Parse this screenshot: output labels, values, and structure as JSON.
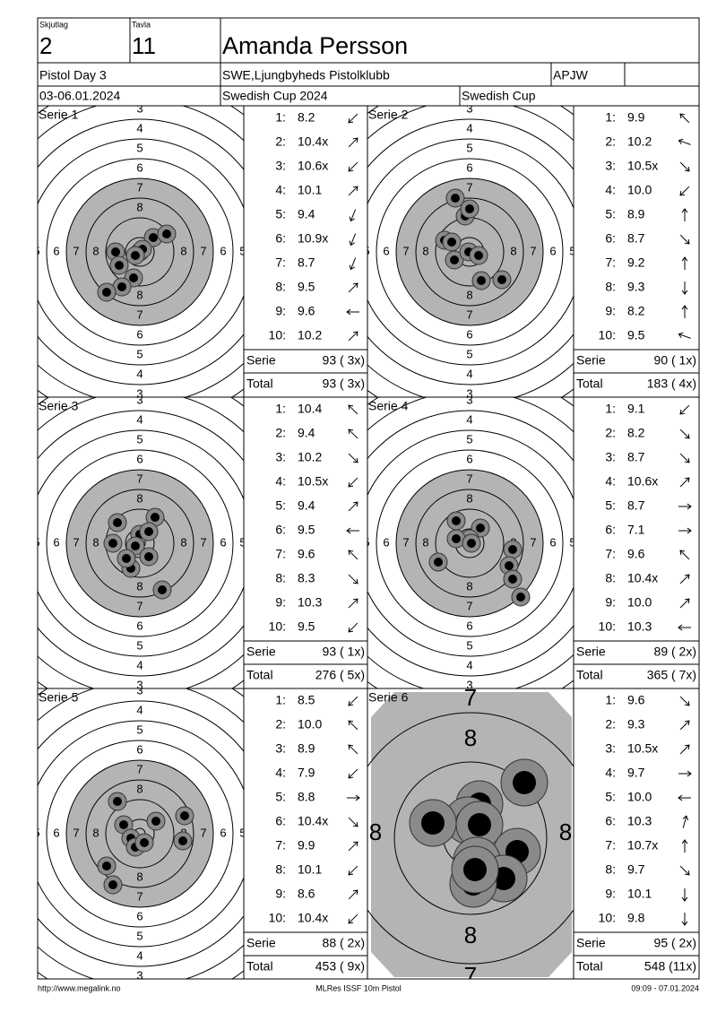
{
  "header": {
    "skjutlag_label": "Skjutlag",
    "skjutlag": "2",
    "tavla_label": "Tavla",
    "tavla": "11",
    "name": "Amanda Persson",
    "event": "Pistol Day 3",
    "club": "SWE,Ljungbyheds Pistolklubb",
    "class": "APJW",
    "date": "03-06.01.2024",
    "competition": "Swedish Cup 2024",
    "cup": "Swedish Cup"
  },
  "ring_labels": [
    "3",
    "4",
    "5",
    "6",
    "7",
    "8"
  ],
  "shot_numbers": [
    "1:",
    "2:",
    "3:",
    "4:",
    "5:",
    "6:",
    "7:",
    "8:",
    "9:",
    "10:"
  ],
  "serie_label": "Serie",
  "total_label": "Total",
  "series": [
    {
      "name": "Serie 1",
      "shots": [
        "8.2",
        "10.4x",
        "10.6x",
        "10.1",
        "9.4",
        "10.9x",
        "8.7",
        "9.5",
        "9.6",
        "10.2"
      ],
      "serie_score": "93 ( 3x)",
      "total_score": "93 ( 3x)"
    },
    {
      "name": "Serie 2",
      "shots": [
        "9.9",
        "10.2",
        "10.5x",
        "10.0",
        "8.9",
        "8.7",
        "9.2",
        "9.3",
        "8.2",
        "9.5"
      ],
      "serie_score": "90 ( 1x)",
      "total_score": "183 ( 4x)"
    },
    {
      "name": "Serie 3",
      "shots": [
        "10.4",
        "9.4",
        "10.2",
        "10.5x",
        "9.4",
        "9.5",
        "9.6",
        "8.3",
        "10.3",
        "9.5"
      ],
      "serie_score": "93 ( 1x)",
      "total_score": "276 ( 5x)"
    },
    {
      "name": "Serie 4",
      "shots": [
        "9.1",
        "8.2",
        "8.7",
        "10.6x",
        "8.7",
        "7.1",
        "9.6",
        "10.4x",
        "10.0",
        "10.3"
      ],
      "serie_score": "89 ( 2x)",
      "total_score": "365 ( 7x)"
    },
    {
      "name": "Serie 5",
      "shots": [
        "8.5",
        "10.0",
        "8.9",
        "7.9",
        "8.8",
        "10.4x",
        "9.9",
        "10.1",
        "8.6",
        "10.4x"
      ],
      "serie_score": "88 ( 2x)",
      "total_score": "453 ( 9x)"
    },
    {
      "name": "Serie 6",
      "shots": [
        "9.6",
        "9.3",
        "10.5x",
        "9.7",
        "10.0",
        "10.3",
        "10.7x",
        "9.7",
        "10.1",
        "9.8"
      ],
      "serie_score": "95 ( 2x)",
      "total_score": "548 (11x)"
    }
  ],
  "footer": {
    "left": "http://www.megalink.no",
    "center": "MLRes ISSF 10m Pistol",
    "right": "09:09 - 07.01.2024"
  }
}
